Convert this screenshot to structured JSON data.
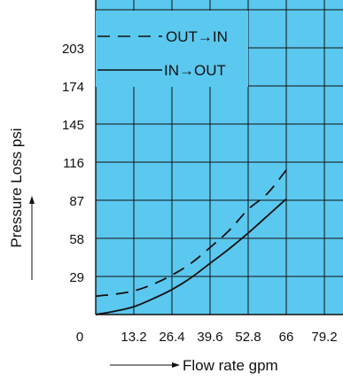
{
  "chart_data": {
    "type": "line",
    "title": "",
    "xlabel": "Flow rate gpm",
    "ylabel": "Pressure Loss psi",
    "x_ticks": [
      0,
      13.2,
      26.4,
      39.6,
      52.8,
      66,
      79.2
    ],
    "y_ticks": [
      29,
      58,
      87,
      116,
      145,
      174,
      203
    ],
    "xlim": [
      0,
      79.2
    ],
    "ylim": [
      0,
      232
    ],
    "grid": true,
    "background_color": "#5bc8ef",
    "legend_position": "top-left",
    "series": [
      {
        "name": "OUT→IN",
        "style": "dashed",
        "color": "#111111",
        "x": [
          0,
          6.6,
          13.2,
          19.8,
          26.4,
          33,
          39.6,
          46.2,
          52.8,
          59.4,
          66
        ],
        "y": [
          14,
          15.5,
          18,
          23,
          30,
          39,
          51,
          64,
          80,
          92,
          110
        ]
      },
      {
        "name": "IN→OUT",
        "style": "solid",
        "color": "#111111",
        "x": [
          0,
          6.6,
          13.2,
          19.8,
          26.4,
          33,
          39.6,
          46.2,
          52.8,
          59.4,
          66
        ],
        "y": [
          0,
          2.5,
          6,
          12,
          19,
          28,
          39,
          50,
          62,
          75,
          88
        ]
      }
    ]
  }
}
